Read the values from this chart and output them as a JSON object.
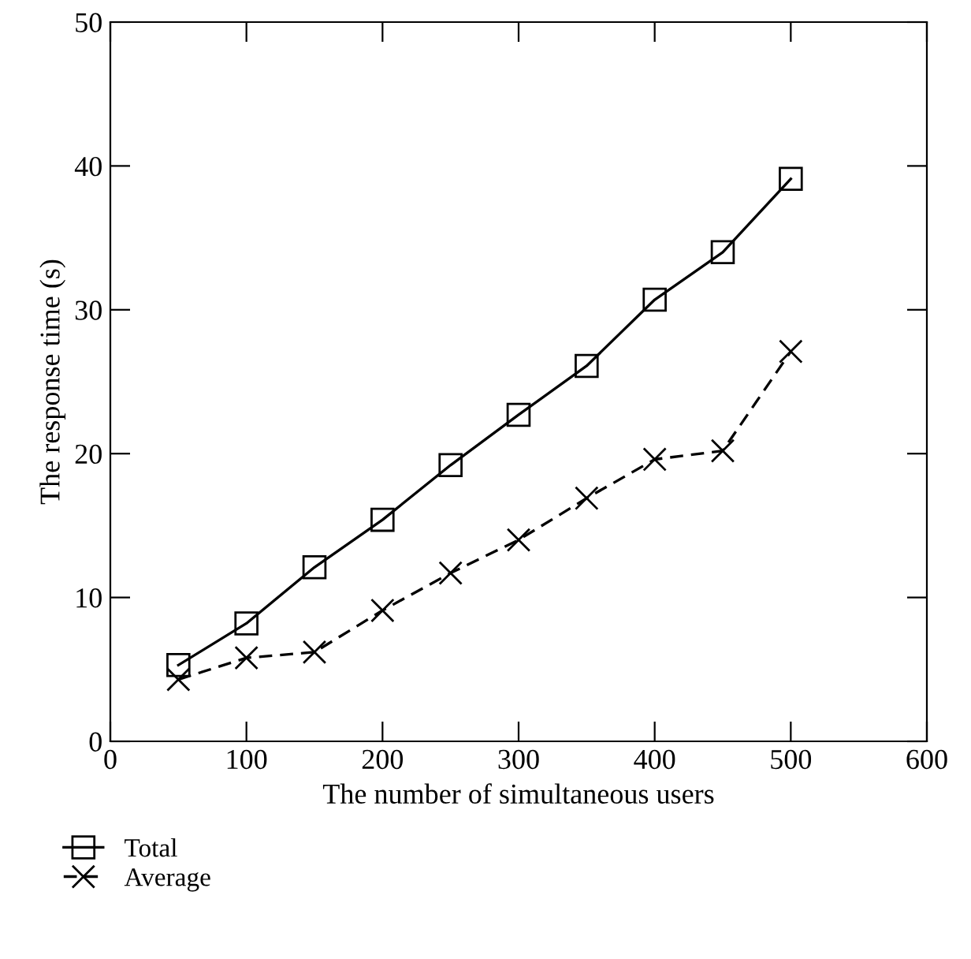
{
  "chart_data": {
    "type": "line",
    "xlabel": "The number of simultaneous users",
    "ylabel": "The response time (s)",
    "x": [
      50,
      100,
      150,
      200,
      250,
      300,
      350,
      400,
      450,
      500
    ],
    "series": [
      {
        "name": "Total",
        "color": "#000000",
        "marker": "square",
        "line_style": "solid",
        "values": [
          5.3,
          8.2,
          12.1,
          15.4,
          19.2,
          22.7,
          26.1,
          30.7,
          34.0,
          39.1
        ]
      },
      {
        "name": "Average",
        "color": "#000000",
        "marker": "cross",
        "line_style": "dashed",
        "values": [
          4.3,
          5.8,
          6.2,
          9.1,
          11.7,
          14.0,
          16.9,
          19.6,
          20.2,
          27.1
        ]
      }
    ],
    "xlim": [
      0,
      600
    ],
    "xticks": [
      0,
      100,
      200,
      300,
      400,
      500,
      600
    ],
    "ylim": [
      0,
      50
    ],
    "yticks": [
      0,
      10,
      20,
      30,
      40,
      50
    ],
    "grid": false,
    "legend": "bottom left"
  }
}
